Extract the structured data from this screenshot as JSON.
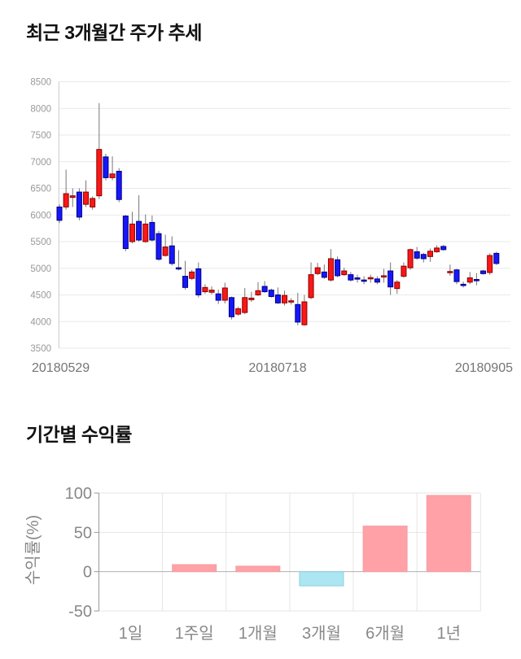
{
  "page": {
    "background": "#ffffff",
    "section1_title": "최근 3개월간 주가 추세",
    "section2_title": "기간별 수익률"
  },
  "chart_data": [
    {
      "type": "candlestick",
      "title": "최근 3개월간 주가 추세",
      "ylim": [
        3500,
        8500
      ],
      "y_ticks": [
        8500,
        8000,
        7500,
        7000,
        6500,
        6000,
        5500,
        5000,
        4500,
        4000,
        3500
      ],
      "x_tick_labels": [
        "20180529",
        "20180718",
        "20180905"
      ],
      "grid": true,
      "legend_position": "none",
      "colors": {
        "up_fill": "#fb1717",
        "up_stroke": "#8b0000",
        "down_fill": "#1717fb",
        "down_stroke": "#000080",
        "wick": "#777777",
        "grid": "#e9e9e9",
        "spine": "#c8c8c8",
        "y_label": "#999999",
        "x_label": "#757575"
      },
      "candles_ohlc": [
        [
          6150,
          6200,
          5850,
          5900
        ],
        [
          6150,
          6850,
          6100,
          6400
        ],
        [
          6330,
          6500,
          6150,
          6360
        ],
        [
          6430,
          6500,
          5900,
          5960
        ],
        [
          6200,
          6650,
          6150,
          6430
        ],
        [
          6150,
          6350,
          6100,
          6310
        ],
        [
          6360,
          8100,
          6300,
          7230
        ],
        [
          7090,
          7150,
          6650,
          6700
        ],
        [
          6700,
          7100,
          6650,
          6770
        ],
        [
          6820,
          6880,
          6240,
          6290
        ],
        [
          5980,
          6000,
          5320,
          5370
        ],
        [
          5500,
          6060,
          5470,
          5830
        ],
        [
          5880,
          6370,
          5500,
          5530
        ],
        [
          5500,
          6010,
          5480,
          5830
        ],
        [
          5860,
          5990,
          5500,
          5530
        ],
        [
          5650,
          5700,
          5140,
          5170
        ],
        [
          5240,
          5630,
          5220,
          5400
        ],
        [
          5420,
          5600,
          5050,
          5090
        ],
        [
          5010,
          5340,
          4960,
          4990
        ],
        [
          4850,
          5140,
          4600,
          4640
        ],
        [
          4810,
          4970,
          4780,
          4930
        ],
        [
          4990,
          5110,
          4450,
          4500
        ],
        [
          4560,
          4700,
          4520,
          4640
        ],
        [
          4550,
          4660,
          4510,
          4590
        ],
        [
          4520,
          4600,
          4330,
          4400
        ],
        [
          4400,
          4730,
          4340,
          4630
        ],
        [
          4450,
          4470,
          4040,
          4090
        ],
        [
          4140,
          4280,
          4110,
          4240
        ],
        [
          4170,
          4630,
          4140,
          4450
        ],
        [
          4410,
          4560,
          4370,
          4440
        ],
        [
          4500,
          4740,
          4480,
          4580
        ],
        [
          4660,
          4760,
          4540,
          4560
        ],
        [
          4590,
          4620,
          4450,
          4470
        ],
        [
          4500,
          4640,
          4330,
          4350
        ],
        [
          4350,
          4580,
          4300,
          4490
        ],
        [
          4380,
          4440,
          4320,
          4390
        ],
        [
          4320,
          4540,
          3930,
          3990
        ],
        [
          3940,
          4500,
          3920,
          4370
        ],
        [
          4450,
          5110,
          4420,
          4880
        ],
        [
          4900,
          5100,
          4870,
          5010
        ],
        [
          4930,
          5070,
          4800,
          4830
        ],
        [
          4780,
          5360,
          4750,
          5180
        ],
        [
          5160,
          5220,
          4830,
          4860
        ],
        [
          4880,
          5010,
          4860,
          4950
        ],
        [
          4880,
          4930,
          4750,
          4780
        ],
        [
          4820,
          4880,
          4730,
          4810
        ],
        [
          4780,
          4850,
          4700,
          4770
        ],
        [
          4810,
          4880,
          4730,
          4825
        ],
        [
          4800,
          4850,
          4700,
          4740
        ],
        [
          4850,
          4990,
          4730,
          4860
        ],
        [
          4950,
          5110,
          4500,
          4650
        ],
        [
          4620,
          4780,
          4520,
          4740
        ],
        [
          4850,
          5110,
          4820,
          5040
        ],
        [
          5010,
          5370,
          4970,
          5350
        ],
        [
          5310,
          5400,
          5160,
          5190
        ],
        [
          5260,
          5290,
          5110,
          5180
        ],
        [
          5220,
          5370,
          5120,
          5320
        ],
        [
          5310,
          5430,
          5290,
          5380
        ],
        [
          5410,
          5440,
          5330,
          5350
        ],
        [
          4930,
          5070,
          4860,
          4940
        ],
        [
          4970,
          4990,
          4700,
          4750
        ],
        [
          4700,
          4750,
          4640,
          4690
        ],
        [
          4740,
          4930,
          4700,
          4820
        ],
        [
          4790,
          4910,
          4680,
          4780
        ],
        [
          4950,
          4970,
          4880,
          4900
        ],
        [
          4920,
          5280,
          4880,
          5240
        ],
        [
          5280,
          5310,
          5060,
          5090
        ]
      ]
    },
    {
      "type": "bar",
      "title": "기간별 수익률",
      "categories": [
        "1일",
        "1주일",
        "1개월",
        "3개월",
        "6개월",
        "1년"
      ],
      "values": [
        0,
        9,
        7,
        -18,
        58,
        97
      ],
      "ylabel": "수익률(%)",
      "xlabel": "",
      "y_ticks": [
        100,
        50,
        0,
        -50
      ],
      "ylim": [
        -50,
        100
      ],
      "grid": true,
      "legend_position": "none",
      "colors": {
        "positive_fill": "#ffa1a6",
        "positive_stroke": "#ef9fa5",
        "negative_fill": "#abe6f2",
        "negative_stroke": "#8fd0de",
        "grid": "#e5e5e5",
        "zero_line": "#b0b0b0",
        "spine": "#9a9a9a",
        "label": "#888888"
      }
    }
  ]
}
